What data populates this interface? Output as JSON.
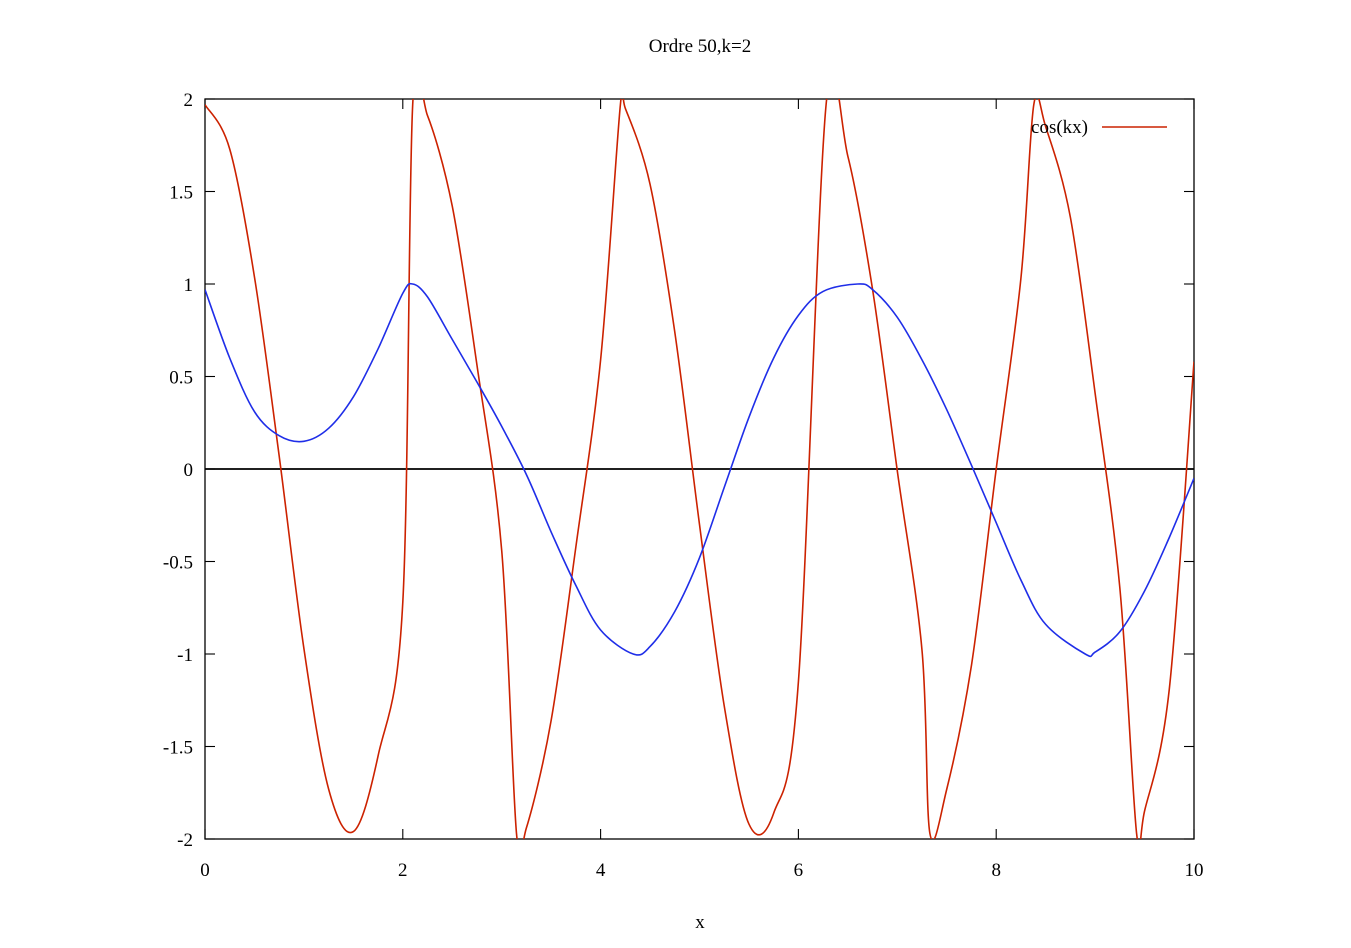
{
  "chart_data": {
    "type": "line",
    "title": "Ordre 50,k=2",
    "xlabel": "x",
    "ylabel": "",
    "xlim": [
      0,
      10
    ],
    "ylim": [
      -2,
      2
    ],
    "x_ticks": [
      0,
      2,
      4,
      6,
      8,
      10
    ],
    "x_tick_labels": [
      "0",
      "2",
      "4",
      "6",
      "8",
      "10"
    ],
    "y_ticks": [
      -2,
      -1.5,
      -1,
      -0.5,
      0,
      0.5,
      1,
      1.5,
      2
    ],
    "y_tick_labels": [
      "-2",
      "-1.5",
      "-1",
      "-0.5",
      "0",
      "0.5",
      "1",
      "1.5",
      "2"
    ],
    "zero_line": true,
    "grid": false,
    "legend_position": "top-right",
    "series": [
      {
        "name": "cos(kx)",
        "color": "#cc2200",
        "x": [
          0.0,
          0.25,
          0.5,
          0.75,
          1.0,
          1.25,
          1.5,
          1.75,
          2.0,
          2.1,
          2.25,
          2.5,
          2.75,
          3.0,
          3.15,
          3.25,
          3.5,
          3.75,
          4.0,
          4.2,
          4.25,
          4.5,
          4.75,
          5.0,
          5.25,
          5.5,
          5.75,
          6.0,
          6.28,
          6.5,
          6.75,
          7.0,
          7.25,
          7.33,
          7.5,
          7.75,
          8.0,
          8.25,
          8.38,
          8.5,
          8.75,
          9.0,
          9.25,
          9.42,
          9.5,
          9.75,
          10.0
        ],
        "y": [
          1.97,
          1.73,
          1.04,
          0.07,
          -0.97,
          -1.73,
          -1.96,
          -1.55,
          -0.72,
          1.97,
          1.91,
          1.42,
          0.56,
          -0.44,
          -1.97,
          -1.94,
          -1.36,
          -0.42,
          0.59,
          1.97,
          1.95,
          1.54,
          0.74,
          -0.3,
          -1.28,
          -1.92,
          -1.86,
          -1.15,
          1.97,
          1.69,
          0.97,
          -0.01,
          -0.98,
          -1.97,
          -1.73,
          -1.06,
          0.0,
          1.03,
          1.97,
          1.85,
          1.36,
          0.41,
          -0.64,
          -1.97,
          -1.85,
          -1.19,
          0.58
        ]
      },
      {
        "name": "",
        "color": "#1f2ee8",
        "x": [
          0.0,
          0.25,
          0.5,
          0.75,
          1.0,
          1.25,
          1.5,
          1.75,
          2.0,
          2.1,
          2.25,
          2.5,
          2.75,
          3.0,
          3.25,
          3.5,
          3.75,
          4.0,
          4.33,
          4.5,
          4.75,
          5.0,
          5.25,
          5.5,
          5.75,
          6.0,
          6.25,
          6.6,
          6.75,
          7.0,
          7.25,
          7.5,
          7.75,
          8.0,
          8.25,
          8.5,
          8.9,
          9.0,
          9.25,
          9.5,
          9.75,
          10.0
        ],
        "y": [
          0.97,
          0.6,
          0.31,
          0.18,
          0.15,
          0.22,
          0.39,
          0.65,
          0.95,
          1.0,
          0.93,
          0.7,
          0.47,
          0.23,
          -0.03,
          -0.34,
          -0.63,
          -0.87,
          -1.0,
          -0.96,
          -0.77,
          -0.48,
          -0.1,
          0.28,
          0.6,
          0.83,
          0.96,
          1.0,
          0.97,
          0.82,
          0.59,
          0.32,
          0.02,
          -0.29,
          -0.6,
          -0.84,
          -1.0,
          -0.99,
          -0.88,
          -0.66,
          -0.37,
          -0.05
        ]
      }
    ]
  }
}
